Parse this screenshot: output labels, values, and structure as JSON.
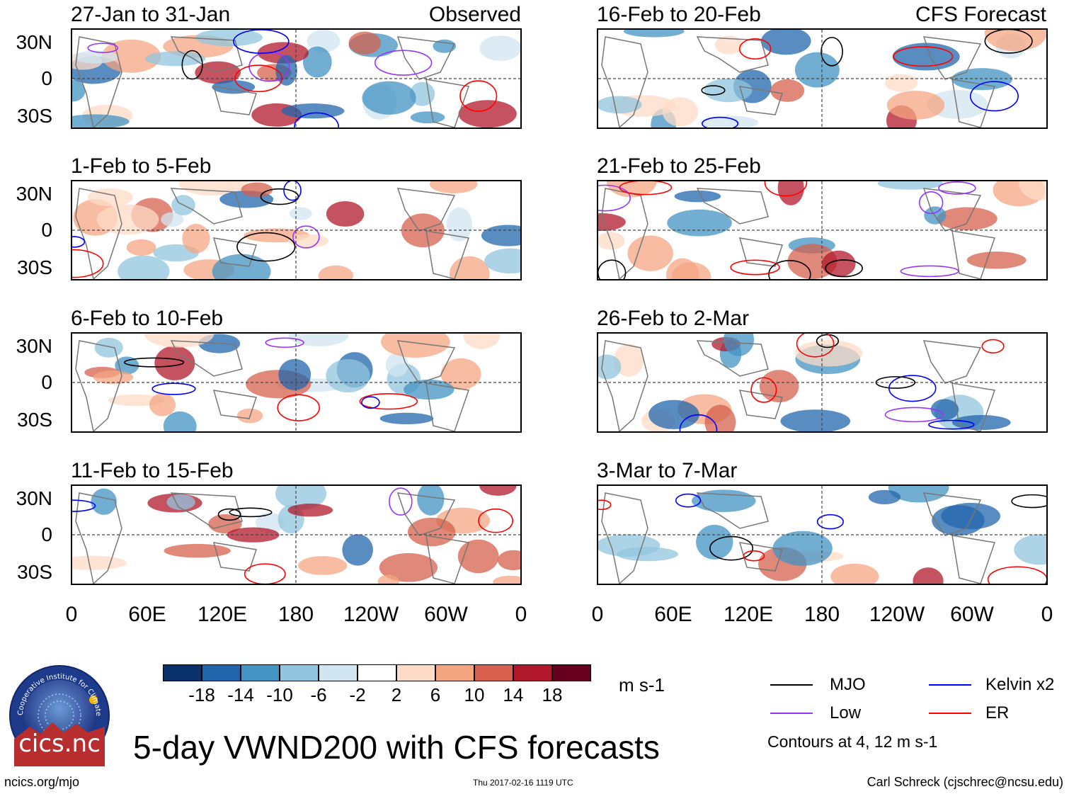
{
  "panels": [
    {
      "id": "p1",
      "title_left": "27-Jan to 31-Jan",
      "title_right": "Observed"
    },
    {
      "id": "p2",
      "title_left": "1-Feb to 5-Feb",
      "title_right": ""
    },
    {
      "id": "p3",
      "title_left": "6-Feb to 10-Feb",
      "title_right": ""
    },
    {
      "id": "p4",
      "title_left": "11-Feb to 15-Feb",
      "title_right": ""
    },
    {
      "id": "p5",
      "title_left": "16-Feb to 20-Feb",
      "title_right": "CFS Forecast"
    },
    {
      "id": "p6",
      "title_left": "21-Feb to 25-Feb",
      "title_right": ""
    },
    {
      "id": "p7",
      "title_left": "26-Feb to 2-Mar",
      "title_right": ""
    },
    {
      "id": "p8",
      "title_left": "3-Mar to 7-Mar",
      "title_right": ""
    }
  ],
  "y_ticks": [
    "30N",
    "0",
    "30S"
  ],
  "x_ticks": [
    "0",
    "60E",
    "120E",
    "180",
    "120W",
    "60W",
    "0"
  ],
  "colorbar": {
    "colors": [
      "#08306b",
      "#2166ac",
      "#4393c3",
      "#92c5de",
      "#d1e5f0",
      "#ffffff",
      "#fddbc7",
      "#f4a582",
      "#d6604d",
      "#b2182b",
      "#67001f"
    ],
    "labels": [
      "-18",
      "-14",
      "-10",
      "-6",
      "-2",
      "2",
      "6",
      "10",
      "14",
      "18"
    ],
    "units": "m s-1"
  },
  "legend": {
    "items": [
      {
        "name": "MJO",
        "color": "#000000"
      },
      {
        "name": "Kelvin x2",
        "color": "#0000ff"
      },
      {
        "name": "Low",
        "color": "#9933ff"
      },
      {
        "name": "ER",
        "color": "#ff0000"
      }
    ],
    "note": "Contours at 4, 12 m s-1"
  },
  "main_title": "5-day VWND200 with CFS forecasts",
  "logo_text": "cics.nc",
  "logo_ring_text": "Cooperative Institute for Climate and Satellites",
  "footer": {
    "left": "ncics.org/mjo",
    "center": "Thu 2017-02-16 1119 UTC",
    "right": "Carl Schreck (cjschrec@ncsu.edu)"
  }
}
